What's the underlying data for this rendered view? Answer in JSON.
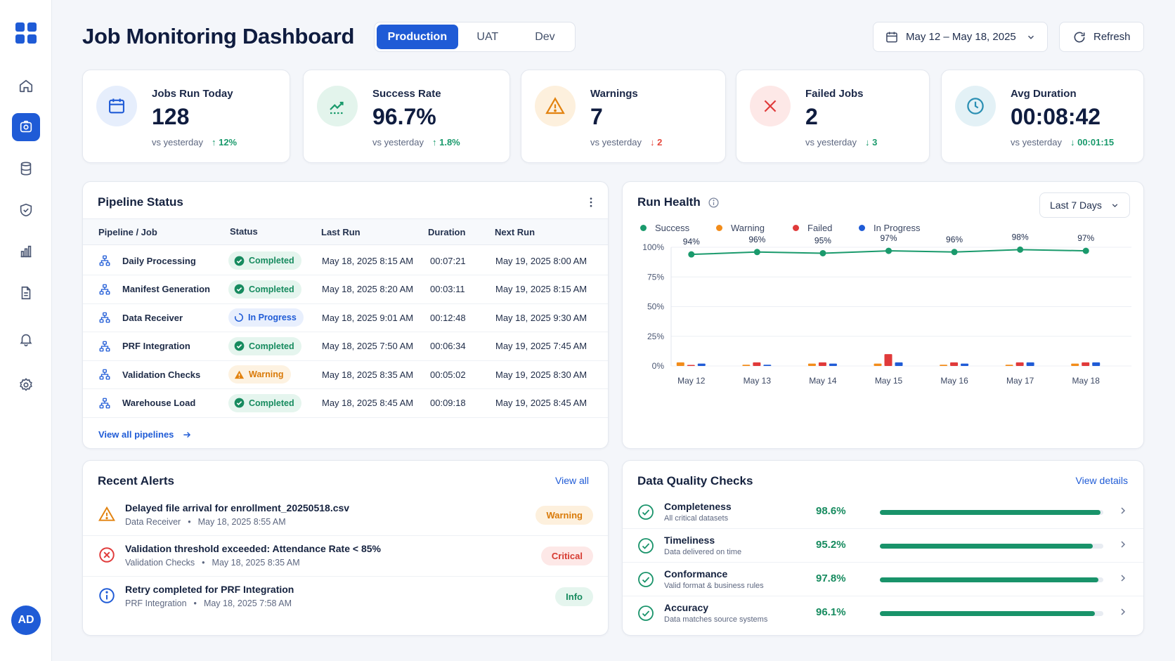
{
  "header": {
    "title": "Job Monitoring Dashboard",
    "env_tabs": [
      {
        "label": "Production",
        "active": true
      },
      {
        "label": "UAT",
        "active": false
      },
      {
        "label": "Dev",
        "active": false
      }
    ],
    "date_range": "May 12 – May 18, 2025",
    "refresh_label": "Refresh"
  },
  "sidebar": {
    "items": [
      {
        "icon": "home-icon"
      },
      {
        "icon": "jobs-icon",
        "active": true
      },
      {
        "icon": "database-icon"
      },
      {
        "icon": "shield-icon"
      },
      {
        "icon": "bar-chart-icon"
      },
      {
        "icon": "document-icon"
      },
      {
        "icon": "bell-icon"
      },
      {
        "icon": "gear-icon"
      }
    ],
    "avatar_initials": "AD"
  },
  "kpis": [
    {
      "label": "Jobs Run Today",
      "value": "128",
      "sub": "vs yesterday",
      "delta": "↑ 12%",
      "icon": "calendar-icon"
    },
    {
      "label": "Success Rate",
      "value": "96.7%",
      "sub": "vs yesterday",
      "delta": "↑ 1.8%",
      "icon": "trend-chart-icon"
    },
    {
      "label": "Warnings",
      "value": "7",
      "sub": "vs yesterday",
      "delta": "↓ 2",
      "icon": "warning-icon"
    },
    {
      "label": "Failed Jobs",
      "value": "2",
      "sub": "vs yesterday",
      "delta": "↓ 3",
      "icon": "close-icon"
    },
    {
      "label": "Avg Duration",
      "value": "00:08:42",
      "sub": "vs yesterday",
      "delta": "↓ 00:01:15",
      "icon": "clock-icon"
    }
  ],
  "pipeline": {
    "title": "Pipeline Status",
    "columns": [
      "Pipeline / Job",
      "Status",
      "Last Run",
      "Duration",
      "Next Run"
    ],
    "rows": [
      {
        "name": "Daily Processing",
        "status": "Completed",
        "last_run": "May 18, 2025 8:15 AM",
        "duration": "00:07:21",
        "next_run": "May 19, 2025 8:00 AM"
      },
      {
        "name": "Manifest Generation",
        "status": "Completed",
        "last_run": "May 18, 2025 8:20 AM",
        "duration": "00:03:11",
        "next_run": "May 19, 2025 8:15 AM"
      },
      {
        "name": "Data Receiver",
        "status": "In Progress",
        "last_run": "May 18, 2025 9:01 AM",
        "duration": "00:12:48",
        "next_run": "May 18, 2025 9:30 AM"
      },
      {
        "name": "PRF Integration",
        "status": "Completed",
        "last_run": "May 18, 2025 7:50 AM",
        "duration": "00:06:34",
        "next_run": "May 19, 2025 7:45 AM"
      },
      {
        "name": "Validation Checks",
        "status": "Warning",
        "last_run": "May 18, 2025 8:35 AM",
        "duration": "00:05:02",
        "next_run": "May 19, 2025 8:30 AM"
      },
      {
        "name": "Warehouse Load",
        "status": "Completed",
        "last_run": "May 18, 2025 8:45 AM",
        "duration": "00:09:18",
        "next_run": "May 19, 2025 8:45 AM"
      }
    ],
    "view_all": "View all pipelines"
  },
  "run_health": {
    "title": "Run Health",
    "range_select": "Last 7 Days",
    "legend": [
      "Success",
      "Warning",
      "Failed",
      "In Progress"
    ]
  },
  "chart_data": {
    "type": "line",
    "x": [
      "May 12",
      "May 13",
      "May 14",
      "May 15",
      "May 16",
      "May 17",
      "May 18"
    ],
    "yticks": [
      "100%",
      "75%",
      "50%",
      "25%",
      "0%"
    ],
    "ylim": [
      0,
      100
    ],
    "success_labels": [
      "94%",
      "96%",
      "95%",
      "97%",
      "96%",
      "98%",
      "97%"
    ],
    "series": [
      {
        "name": "Success",
        "color": "#1a9a6c",
        "values": [
          94,
          96,
          95,
          97,
          96,
          98,
          97
        ]
      },
      {
        "name": "Warning",
        "color": "#f28c1a",
        "values": [
          3,
          1,
          2,
          2,
          1,
          1,
          2
        ]
      },
      {
        "name": "Failed",
        "color": "#e03a3a",
        "values": [
          0,
          3,
          3,
          10,
          3,
          3,
          3
        ]
      },
      {
        "name": "In Progress",
        "color": "#1f5bd6",
        "values": [
          2,
          1,
          2,
          3,
          2,
          3,
          3
        ]
      }
    ]
  },
  "alerts": {
    "title": "Recent Alerts",
    "view_all": "View all",
    "items": [
      {
        "type": "warning",
        "title": "Delayed file arrival for enrollment_20250518.csv",
        "source": "Data Receiver",
        "time": "May 18, 2025 8:55 AM",
        "badge": "Warning"
      },
      {
        "type": "critical",
        "title": "Validation threshold exceeded: Attendance Rate < 85%",
        "source": "Validation Checks",
        "time": "May 18, 2025 8:35 AM",
        "badge": "Critical"
      },
      {
        "type": "info",
        "title": "Retry completed for PRF Integration",
        "source": "PRF Integration",
        "time": "May 18, 2025 7:58 AM",
        "badge": "Info"
      }
    ]
  },
  "data_quality": {
    "title": "Data Quality Checks",
    "view_details": "View details",
    "items": [
      {
        "name": "Completeness",
        "desc": "All critical datasets",
        "value": "98.6%",
        "pct": 98.6
      },
      {
        "name": "Timeliness",
        "desc": "Data delivered on time",
        "value": "95.2%",
        "pct": 95.2
      },
      {
        "name": "Conformance",
        "desc": "Valid format & business rules",
        "value": "97.8%",
        "pct": 97.8
      },
      {
        "name": "Accuracy",
        "desc": "Data matches source systems",
        "value": "96.1%",
        "pct": 96.1
      }
    ]
  }
}
